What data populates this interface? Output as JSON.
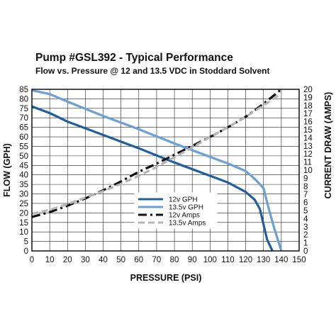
{
  "chart_data": {
    "type": "line",
    "title": "Pump #GSL392 - Typical Performance",
    "subtitle": "Flow vs. Pressure @ 12 and 13.5 VDC in Stoddard Solvent",
    "xlabel": "PRESSURE (PSI)",
    "ylabel": "FLOW (GPH)",
    "y2label": "CURRENT DRAW (AMPS)",
    "xlim": [
      0,
      150
    ],
    "ylim": [
      0,
      85
    ],
    "y2lim": [
      0,
      20
    ],
    "xticks": [
      "0",
      "10",
      "20",
      "30",
      "40",
      "50",
      "60",
      "70",
      "80",
      "90",
      "100",
      "110",
      "120",
      "130",
      "140",
      "150"
    ],
    "yticks": [
      "0",
      "5",
      "10",
      "15",
      "20",
      "25",
      "30",
      "35",
      "40",
      "45",
      "50",
      "55",
      "60",
      "65",
      "70",
      "75",
      "80",
      "85"
    ],
    "y2ticks": [
      "0",
      "1",
      "2",
      "3",
      "4",
      "5",
      "6",
      "7",
      "8",
      "9",
      "10",
      "11",
      "12",
      "13",
      "14",
      "15",
      "16",
      "17",
      "18",
      "19",
      "20"
    ],
    "grid": true,
    "legend_position": "lower-center",
    "series": [
      {
        "name": "12v GPH",
        "axis": "left",
        "color": "#1f5f9e",
        "dash": "solid",
        "x": [
          0,
          10,
          20,
          40,
          60,
          80,
          100,
          110,
          120,
          125,
          128,
          130,
          132,
          135
        ],
        "y": [
          76,
          72.5,
          68,
          61,
          54,
          46.5,
          39.5,
          36,
          31,
          27,
          22,
          14,
          6,
          0
        ]
      },
      {
        "name": "13.5v GPH",
        "axis": "left",
        "color": "#6aa0d6",
        "dash": "solid",
        "x": [
          0,
          10,
          20,
          40,
          60,
          80,
          100,
          110,
          120,
          125,
          130,
          133,
          136,
          140
        ],
        "y": [
          84.5,
          82.5,
          78.5,
          71,
          64,
          56.5,
          49.5,
          46,
          42,
          38,
          33,
          22,
          12,
          0
        ]
      },
      {
        "name": "12v Amps",
        "axis": "right",
        "color": "#111111",
        "dash": "dashdot",
        "x": [
          0,
          10,
          20,
          30,
          40,
          50,
          60,
          70,
          80,
          90,
          100,
          110,
          120,
          130,
          140
        ],
        "y": [
          4.2,
          4.8,
          5.6,
          6.5,
          7.5,
          8.6,
          9.8,
          10.8,
          11.9,
          13.0,
          14.1,
          15.3,
          16.6,
          18.2,
          20.0
        ]
      },
      {
        "name": "13.5v Amps",
        "axis": "right",
        "color": "#b5b5b5",
        "dash": "dash",
        "x": [
          0,
          10,
          20,
          30,
          40,
          50,
          60,
          70,
          80,
          90,
          100,
          110,
          120,
          130,
          140
        ],
        "y": [
          4.6,
          5.1,
          5.8,
          6.6,
          7.4,
          8.3,
          9.3,
          10.4,
          11.6,
          12.8,
          14.1,
          15.3,
          16.6,
          18.0,
          19.5
        ]
      }
    ]
  }
}
